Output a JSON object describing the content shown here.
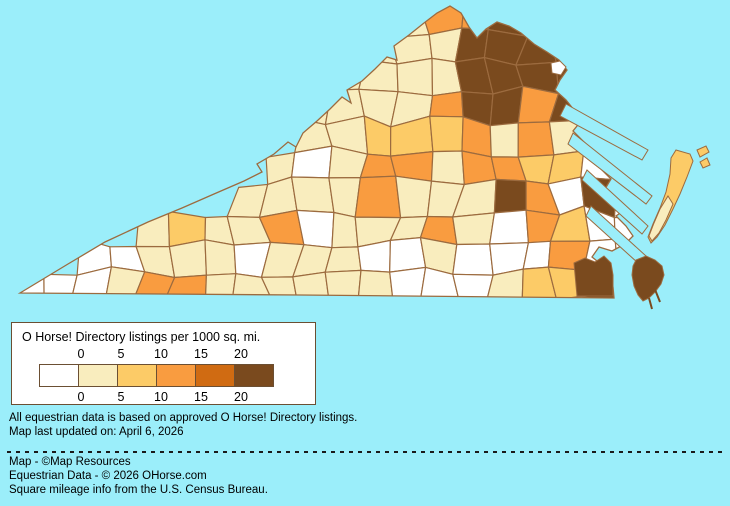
{
  "canvas": {
    "background_color": "#9BEEFA"
  },
  "legend": {
    "title": "O Horse! Directory listings per 1000 sq. mi.",
    "ticks": [
      "0",
      "5",
      "10",
      "15",
      "20"
    ],
    "box_border_color": "#6b4f33",
    "swatch_colors": [
      "#FFFFFF",
      "#F9EDBE",
      "#FCCB67",
      "#F99C40",
      "#D06B12",
      "#7A4A1E"
    ]
  },
  "notes": {
    "disclaimer": "All equestrian data is based on approved O Horse! Directory listings.",
    "last_updated": "Map last updated on: April 6, 2026"
  },
  "credits": {
    "map": "Map - ©Map Resources",
    "data": "Equestrian Data - © 2026 OHorse.com",
    "census": "Square mileage info from the U.S. Census Bureau."
  },
  "chart_data": {
    "type": "choropleth",
    "region": "Virginia counties and independent cities",
    "metric": "O Horse! Directory listings per 1000 sq. mi.",
    "legend_breaks": [
      0,
      5,
      10,
      15,
      20
    ],
    "bucket_labels": [
      "0",
      "0-5",
      "5-10",
      "10-15",
      "15-20",
      "20+"
    ],
    "bucket_colors": [
      "#FFFFFF",
      "#F9EDBE",
      "#FCCB67",
      "#F99C40",
      "#D06B12",
      "#7A4A1E"
    ],
    "water_color": "#9BEEFA",
    "county_border_color": "#9C6B3F",
    "density_grid": {
      "comment": "bucket index per map cell, '.' = water/outside; cell origin (10,2), cell size 32x30",
      "cols": 21,
      "rows": 10,
      "origin": [
        10,
        2
      ],
      "cell_size": [
        32,
        30
      ],
      "buckets": [
        "............1335.....",
        "...........1115555...",
        "..........11115555...",
        ".........111135535...",
        ".........1122231310..",
        "........101331332200.",
        ".......1111311153050.",
        "....1211301113103200.",
        "..001110111001000300.",
        "0001331111110001225.."
      ]
    },
    "features": {
      "high_density_cluster": "Northern Virginia (dark brown, 20+)",
      "other_dark_spots": [
        "Fredericksburg area",
        "west of Richmond",
        "Gloucester/Mathews coast",
        "Chesapeake/Suffolk",
        "Virginia Beach/Norfolk"
      ],
      "eastern_shore": [
        "upper peninsula 5-10",
        "lower tip 0-5"
      ]
    }
  }
}
